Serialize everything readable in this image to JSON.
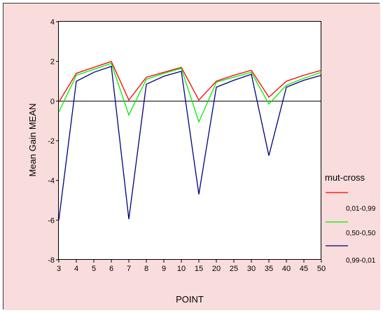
{
  "chart_data": {
    "type": "line",
    "categories": [
      "3",
      "4",
      "5",
      "6",
      "7",
      "8",
      "9",
      "10",
      "15",
      "20",
      "25",
      "30",
      "35",
      "40",
      "45",
      "50"
    ],
    "ylabel": "Mean  Gain MEAN",
    "xlabel": "POINT",
    "ylim": [
      -8,
      4
    ],
    "yticks": [
      "4",
      "2",
      "0",
      "-2",
      "-4",
      "-6",
      "-8"
    ],
    "grid": false,
    "legend": {
      "title": "mut-cross",
      "placement": "right"
    },
    "series": [
      {
        "name": "0,01-0,99",
        "color": "#ff0000",
        "values": [
          -0.05,
          1.4,
          1.7,
          2.0,
          0.05,
          1.2,
          1.45,
          1.7,
          0.05,
          1.0,
          1.3,
          1.55,
          0.2,
          1.0,
          1.3,
          1.55
        ]
      },
      {
        "name": "0,50-0,50",
        "color": "#00ee00",
        "values": [
          -0.55,
          1.3,
          1.6,
          1.9,
          -0.7,
          1.1,
          1.4,
          1.65,
          -1.05,
          0.95,
          1.2,
          1.45,
          -0.15,
          0.8,
          1.15,
          1.45
        ]
      },
      {
        "name": "0,99-0,01",
        "color": "#000080",
        "values": [
          -6.0,
          1.0,
          1.45,
          1.75,
          -5.95,
          0.85,
          1.25,
          1.5,
          -4.7,
          0.7,
          1.05,
          1.35,
          -2.75,
          0.7,
          1.05,
          1.3
        ]
      }
    ],
    "colors": {
      "background": "#f9dcdc",
      "plot_area": "#ffffff",
      "zero_line": "#000000"
    }
  }
}
